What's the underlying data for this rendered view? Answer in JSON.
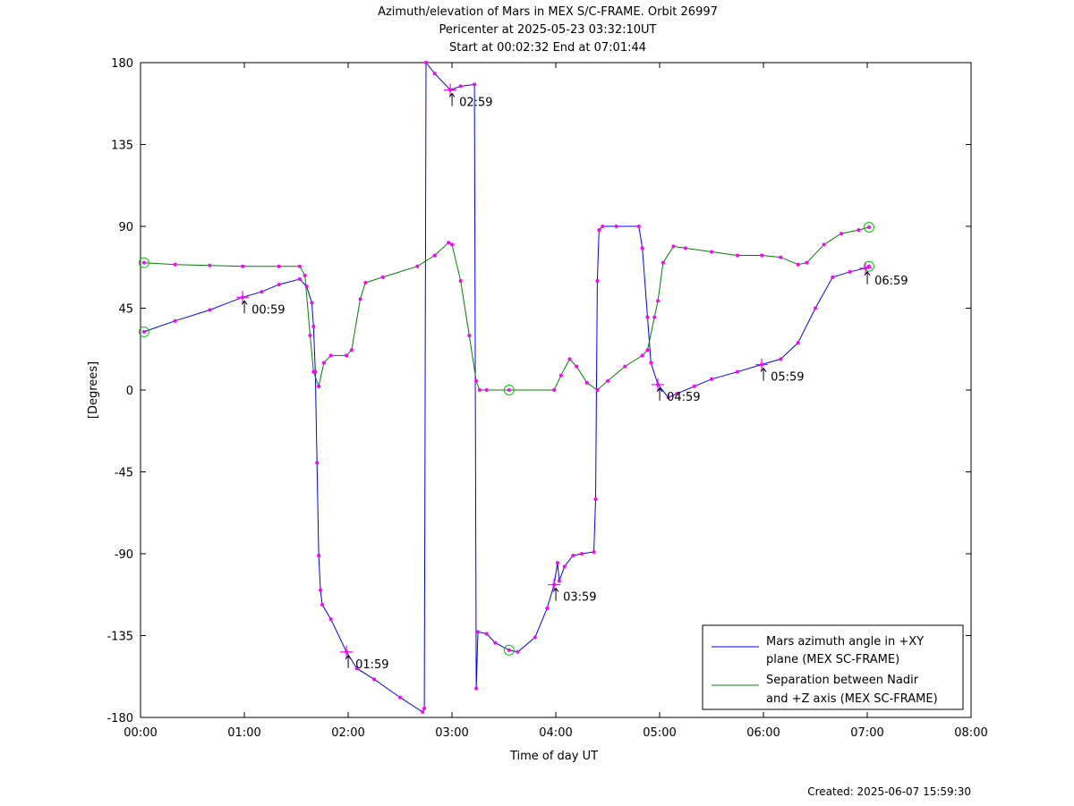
{
  "chart_data": {
    "type": "line",
    "title_lines": [
      "Azimuth/elevation of Mars in MEX S/C-FRAME.  Orbit 26997",
      "Pericenter at 2025-05-23 03:32:10UT",
      "Start at 00:02:32 End at 07:01:44"
    ],
    "xlabel": "Time of day UT",
    "ylabel": "[Degrees]",
    "xlim": [
      "00:00",
      "08:00"
    ],
    "ylim": [
      -180,
      180
    ],
    "x_ticks": [
      "00:00",
      "01:00",
      "02:00",
      "03:00",
      "04:00",
      "05:00",
      "06:00",
      "07:00",
      "08:00"
    ],
    "y_ticks": [
      180,
      135,
      90,
      45,
      0,
      -45,
      -90,
      -135,
      -180
    ],
    "legend_position": "bottom-right",
    "series": [
      {
        "name": "Mars azimuth angle in +XY plane (MEX SC-FRAME)",
        "legend_lines": [
          "Mars azimuth angle in +XY",
          "plane (MEX SC-FRAME)"
        ],
        "color": "#0000ff",
        "points": [
          [
            "00:02",
            32
          ],
          [
            "00:20",
            38
          ],
          [
            "00:40",
            44
          ],
          [
            "00:59",
            51
          ],
          [
            "01:10",
            54
          ],
          [
            "01:20",
            58
          ],
          [
            "01:32",
            61
          ],
          [
            "01:36",
            57
          ],
          [
            "01:39",
            48
          ],
          [
            "01:40",
            35
          ],
          [
            "01:41",
            10
          ],
          [
            "01:42",
            -40
          ],
          [
            "01:43",
            -91
          ],
          [
            "01:44",
            -110
          ],
          [
            "01:45",
            -118
          ],
          [
            "01:50",
            -126
          ],
          [
            "01:59",
            -144
          ],
          [
            "02:05",
            -153
          ],
          [
            "02:15",
            -159
          ],
          [
            "02:30",
            -169
          ],
          [
            "02:43",
            -177
          ],
          [
            "02:44",
            -175
          ],
          [
            "02:45",
            180
          ],
          [
            "02:50",
            174
          ],
          [
            "02:59",
            165
          ],
          [
            "03:05",
            167
          ],
          [
            "03:13",
            168
          ],
          [
            "03:14",
            -164
          ],
          [
            "03:15",
            -133
          ],
          [
            "03:20",
            -134
          ],
          [
            "03:25",
            -139
          ],
          [
            "03:33",
            -143
          ],
          [
            "03:38",
            -144
          ],
          [
            "03:48",
            -136
          ],
          [
            "03:55",
            -120
          ],
          [
            "03:59",
            -107
          ],
          [
            "04:01",
            -95
          ],
          [
            "04:02",
            -105
          ],
          [
            "04:05",
            -97
          ],
          [
            "04:10",
            -91
          ],
          [
            "04:15",
            -90
          ],
          [
            "04:22",
            -89
          ],
          [
            "04:23",
            -60
          ],
          [
            "04:24",
            60
          ],
          [
            "04:25",
            88
          ],
          [
            "04:27",
            90
          ],
          [
            "04:35",
            90
          ],
          [
            "04:48",
            90
          ],
          [
            "04:50",
            78
          ],
          [
            "04:53",
            40
          ],
          [
            "04:55",
            15
          ],
          [
            "04:59",
            3
          ],
          [
            "05:05",
            -4
          ],
          [
            "05:10",
            -2
          ],
          [
            "05:20",
            2
          ],
          [
            "05:30",
            6
          ],
          [
            "05:45",
            10
          ],
          [
            "05:59",
            14
          ],
          [
            "06:10",
            17
          ],
          [
            "06:20",
            26
          ],
          [
            "06:30",
            45
          ],
          [
            "06:40",
            62
          ],
          [
            "06:50",
            65
          ],
          [
            "06:59",
            67
          ],
          [
            "07:01",
            68
          ]
        ]
      },
      {
        "name": "Separation between Nadir and +Z axis (MEX SC-FRAME)",
        "legend_lines": [
          "Separation between Nadir",
          "and +Z axis (MEX SC-FRAME)"
        ],
        "color": "#008000",
        "points": [
          [
            "00:02",
            70
          ],
          [
            "00:20",
            69
          ],
          [
            "00:40",
            68.5
          ],
          [
            "00:59",
            68
          ],
          [
            "01:20",
            68
          ],
          [
            "01:32",
            68
          ],
          [
            "01:35",
            63
          ],
          [
            "01:38",
            30
          ],
          [
            "01:40",
            10
          ],
          [
            "01:43",
            2
          ],
          [
            "01:46",
            15
          ],
          [
            "01:50",
            19
          ],
          [
            "01:59",
            19
          ],
          [
            "02:02",
            22
          ],
          [
            "02:07",
            50
          ],
          [
            "02:10",
            59
          ],
          [
            "02:20",
            62
          ],
          [
            "02:40",
            68
          ],
          [
            "02:50",
            74
          ],
          [
            "02:58",
            81
          ],
          [
            "03:00",
            80
          ],
          [
            "03:05",
            60
          ],
          [
            "03:10",
            30
          ],
          [
            "03:14",
            5
          ],
          [
            "03:16",
            0
          ],
          [
            "03:20",
            0
          ],
          [
            "03:33",
            0
          ],
          [
            "03:59",
            0
          ],
          [
            "04:03",
            8
          ],
          [
            "04:08",
            17
          ],
          [
            "04:12",
            13
          ],
          [
            "04:18",
            4
          ],
          [
            "04:24",
            0
          ],
          [
            "04:30",
            5
          ],
          [
            "04:40",
            13
          ],
          [
            "04:50",
            19
          ],
          [
            "04:53",
            22
          ],
          [
            "04:57",
            40
          ],
          [
            "04:59",
            49
          ],
          [
            "05:02",
            70
          ],
          [
            "05:08",
            79
          ],
          [
            "05:15",
            78
          ],
          [
            "05:30",
            76
          ],
          [
            "05:45",
            74
          ],
          [
            "05:59",
            74
          ],
          [
            "06:10",
            73
          ],
          [
            "06:20",
            69
          ],
          [
            "06:25",
            70
          ],
          [
            "06:35",
            80
          ],
          [
            "06:45",
            86
          ],
          [
            "06:55",
            88
          ],
          [
            "07:01",
            89.5
          ]
        ]
      }
    ],
    "hour_annotations": [
      {
        "label": "00:59",
        "time": "00:59",
        "value": 51
      },
      {
        "label": "01:59",
        "time": "01:59",
        "value": -144
      },
      {
        "label": "02:59",
        "time": "02:59",
        "value": 165
      },
      {
        "label": "03:59",
        "time": "03:59",
        "value": -107
      },
      {
        "label": "04:59",
        "time": "04:59",
        "value": 3
      },
      {
        "label": "05:59",
        "time": "05:59",
        "value": 14
      },
      {
        "label": "06:59",
        "time": "06:59",
        "value": 67
      }
    ],
    "circle_markers": [
      {
        "time": "00:02",
        "value": 70
      },
      {
        "time": "00:02",
        "value": 32
      },
      {
        "time": "03:33",
        "value": 0
      },
      {
        "time": "03:33",
        "value": -143
      },
      {
        "time": "07:01",
        "value": 89.5
      },
      {
        "time": "07:01",
        "value": 68
      }
    ],
    "marker_color": "#ff00ff",
    "circle_color": "#00cc00"
  },
  "footer": {
    "created": "Created: 2025-06-07 15:59:30"
  }
}
